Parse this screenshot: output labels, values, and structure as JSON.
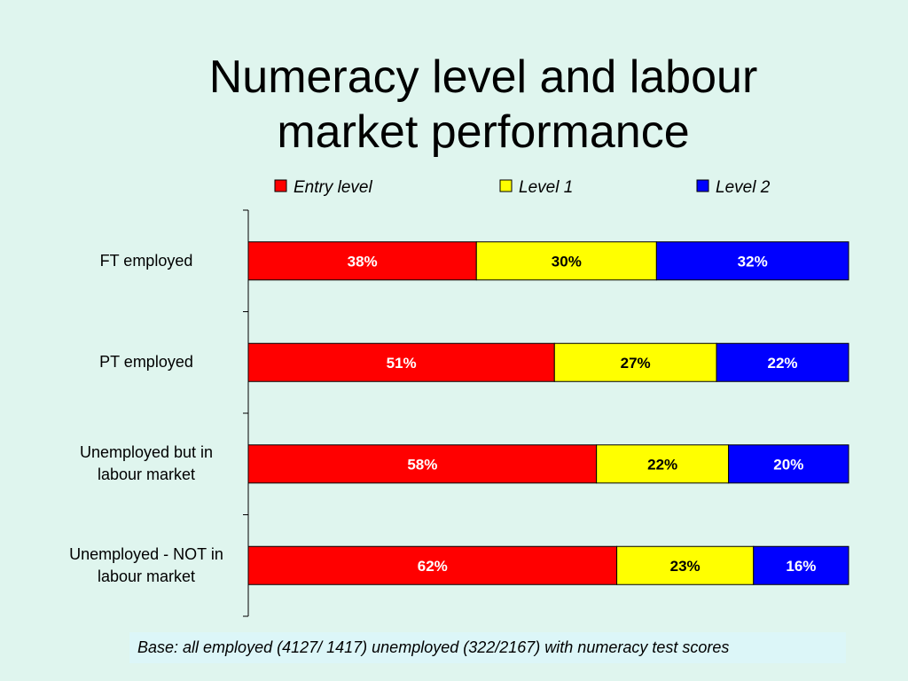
{
  "chart_data": {
    "type": "bar",
    "orientation": "horizontal",
    "stacked": true,
    "percent_stacked": true,
    "title": "Numeracy level and labour\nmarket performance",
    "categories": [
      "FT employed",
      "PT employed",
      "Unemployed but in\nlabour market",
      "Unemployed - NOT in\nlabour market"
    ],
    "series": [
      {
        "name": "Entry level",
        "color": "#ff0000",
        "values": [
          38,
          51,
          58,
          62
        ],
        "labels": [
          "38%",
          "51%",
          "58%",
          "62%"
        ]
      },
      {
        "name": "Level 1",
        "color": "#ffff00",
        "values": [
          30,
          27,
          22,
          23
        ],
        "labels": [
          "30%",
          "27%",
          "22%",
          "23%"
        ]
      },
      {
        "name": "Level 2",
        "color": "#0000ff",
        "values": [
          32,
          22,
          20,
          16
        ],
        "labels": [
          "32%",
          "22%",
          "20%",
          "16%"
        ]
      }
    ],
    "legend_position": "top",
    "grid": false,
    "xlim": [
      0,
      100
    ]
  },
  "footnote": "Base: all employed (4127/ 1417) unemployed (322/2167) with numeracy test scores"
}
